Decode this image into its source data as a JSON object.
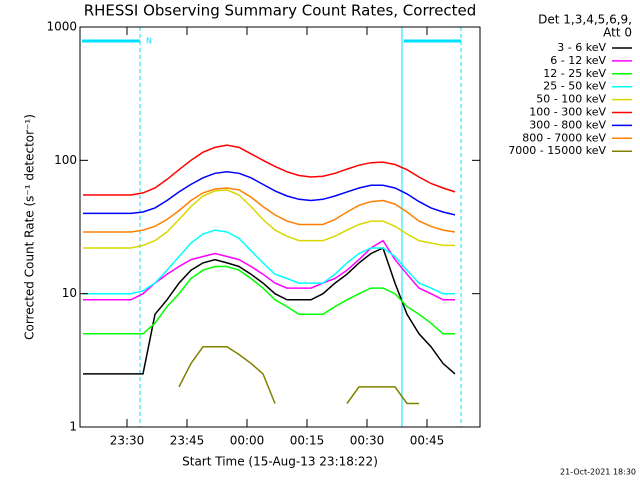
{
  "chart_data": {
    "type": "line",
    "title": "RHESSI Observing Summary Count Rates, Corrected",
    "y_label": "Corrected Count Rate (s⁻¹ detector⁻¹)",
    "x_label": "Start Time (15-Aug-13 23:18:22)",
    "legend_header": [
      "Det 1,3,4,5,6,9,",
      "Att 0"
    ],
    "footer": "21-Oct-2021 18:30",
    "y_log": true,
    "xlim": [
      18.25,
      118.25
    ],
    "xticks": [
      {
        "value": 30,
        "label": "23:30"
      },
      {
        "value": 45,
        "label": "23:45"
      },
      {
        "value": 60,
        "label": "00:00"
      },
      {
        "value": 75,
        "label": "00:15"
      },
      {
        "value": 90,
        "label": "00:30"
      },
      {
        "value": 105,
        "label": "00:45"
      }
    ],
    "ylim": [
      1,
      1000
    ],
    "yticks": [
      1,
      10,
      100,
      1000
    ],
    "intervals": [
      {
        "x": [
          18.25,
          33.25
        ],
        "label": "N"
      },
      {
        "x": [
          98.75,
          113.5
        ]
      }
    ],
    "interval_color": "#00e0ff",
    "x": [
      19,
      22,
      25,
      28,
      31,
      34,
      37,
      40,
      43,
      46,
      49,
      52,
      55,
      58,
      61,
      64,
      67,
      70,
      73,
      76,
      79,
      82,
      85,
      88,
      91,
      94,
      97,
      100,
      103,
      106,
      109,
      112
    ],
    "series": [
      {
        "name": "3 - 6 keV",
        "color": "#000000",
        "values": [
          2.5,
          2.5,
          2.5,
          2.5,
          2.5,
          2.5,
          7,
          9,
          12,
          15,
          17,
          18,
          17,
          16,
          14,
          12,
          10,
          9,
          9,
          9,
          10,
          12,
          14,
          17,
          20,
          22,
          12,
          7,
          5,
          4,
          3,
          2.5
        ]
      },
      {
        "name": "6 - 12 keV",
        "color": "#ff00ff",
        "values": [
          9,
          9,
          9,
          9,
          9,
          10,
          12,
          14,
          16,
          18,
          19,
          20,
          19,
          18,
          16,
          14,
          12,
          11,
          11,
          11,
          12,
          13,
          15,
          18,
          22,
          25,
          18,
          14,
          11,
          10,
          9,
          9
        ]
      },
      {
        "name": "12 - 25 keV",
        "color": "#00ff00",
        "values": [
          5,
          5,
          5,
          5,
          5,
          5,
          6,
          8,
          10,
          13,
          15,
          16,
          16,
          15,
          13,
          11,
          9,
          8,
          7,
          7,
          7,
          8,
          9,
          10,
          11,
          11,
          10,
          8,
          7,
          6,
          5,
          5
        ]
      },
      {
        "name": "25 - 50 keV",
        "color": "#00ffff",
        "values": [
          10,
          10,
          10,
          10,
          10,
          10.5,
          12,
          15,
          19,
          24,
          28,
          30,
          29,
          26,
          21,
          17,
          14,
          13,
          12,
          12,
          12,
          14,
          17,
          20,
          22,
          22,
          19,
          15,
          12,
          11,
          10,
          10
        ]
      },
      {
        "name": "50 - 100 keV",
        "color": "#d8d800",
        "values": [
          22,
          22,
          22,
          22,
          22,
          23,
          25,
          29,
          36,
          45,
          54,
          59,
          60,
          55,
          45,
          36,
          30,
          27,
          25,
          25,
          25,
          27,
          30,
          33,
          35,
          35,
          32,
          28,
          25,
          24,
          23,
          23
        ]
      },
      {
        "name": "100 - 300 keV",
        "color": "#ff0000",
        "values": [
          55,
          55,
          55,
          55,
          55,
          57,
          62,
          72,
          85,
          100,
          115,
          125,
          130,
          125,
          112,
          100,
          90,
          82,
          77,
          75,
          76,
          80,
          86,
          92,
          96,
          97,
          93,
          85,
          75,
          67,
          62,
          58
        ]
      },
      {
        "name": "300 - 800 keV",
        "color": "#0000ff",
        "values": [
          40,
          40,
          40,
          40,
          40,
          41,
          44,
          50,
          58,
          66,
          74,
          80,
          82,
          80,
          74,
          66,
          59,
          54,
          51,
          50,
          51,
          54,
          58,
          62,
          65,
          65,
          62,
          56,
          49,
          44,
          41,
          39
        ]
      },
      {
        "name": "800 - 7000 keV",
        "color": "#ff8000",
        "values": [
          29,
          29,
          29,
          29,
          29,
          30,
          32,
          36,
          42,
          50,
          57,
          61,
          62,
          60,
          53,
          45,
          39,
          35,
          33,
          33,
          33,
          36,
          41,
          46,
          49,
          50,
          47,
          41,
          35,
          32,
          30,
          29
        ]
      },
      {
        "name": "7000 - 15000 keV",
        "color": "#808000",
        "values": [
          null,
          null,
          null,
          null,
          null,
          null,
          null,
          null,
          2,
          3,
          4,
          4,
          4,
          3.5,
          3,
          2.5,
          1.5,
          null,
          null,
          null,
          null,
          null,
          1.5,
          2,
          2,
          2,
          2,
          1.5,
          1.5,
          null,
          null,
          null
        ]
      }
    ]
  }
}
